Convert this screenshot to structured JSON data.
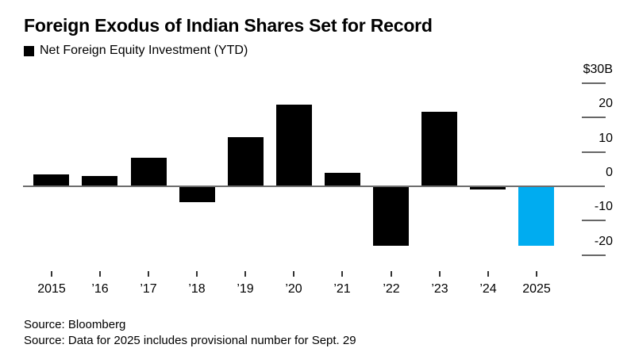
{
  "header": {
    "title": "Foreign Exodus of Indian Shares Set for Record",
    "legend_label": "Net Foreign Equity Investment (YTD)"
  },
  "chart_data": {
    "type": "bar",
    "title": "Foreign Exodus of Indian Shares Set for Record",
    "series_name": "Net Foreign Equity Investment (YTD)",
    "unit": "USD billions",
    "categories": [
      "2015",
      "’16",
      "’17",
      "’18",
      "’19",
      "’20",
      "’21",
      "’22",
      "’23",
      "’24",
      "2025"
    ],
    "values": [
      3.3,
      2.8,
      8.1,
      -4.3,
      14.2,
      23.6,
      3.8,
      -17.1,
      21.5,
      -0.7,
      -17.2
    ],
    "highlight_index": 10,
    "y_ticks": [
      {
        "value": 30,
        "label": "$30B"
      },
      {
        "value": 20,
        "label": "20"
      },
      {
        "value": 10,
        "label": "10"
      },
      {
        "value": 0,
        "label": "0"
      },
      {
        "value": -10,
        "label": "-10"
      },
      {
        "value": -20,
        "label": "-20"
      }
    ],
    "ylim": [
      -24,
      33
    ],
    "grid": false,
    "legend_position": "top-left",
    "colors": {
      "bar": "#000000",
      "highlight": "#00acf0",
      "axis": "#6d6d6d",
      "y_tick": "#666666",
      "x_tick": "#333333"
    }
  },
  "footer": {
    "source_line_1": "Source: Bloomberg",
    "source_line_2": "Source: Data for 2025 includes provisional number for Sept. 29"
  }
}
